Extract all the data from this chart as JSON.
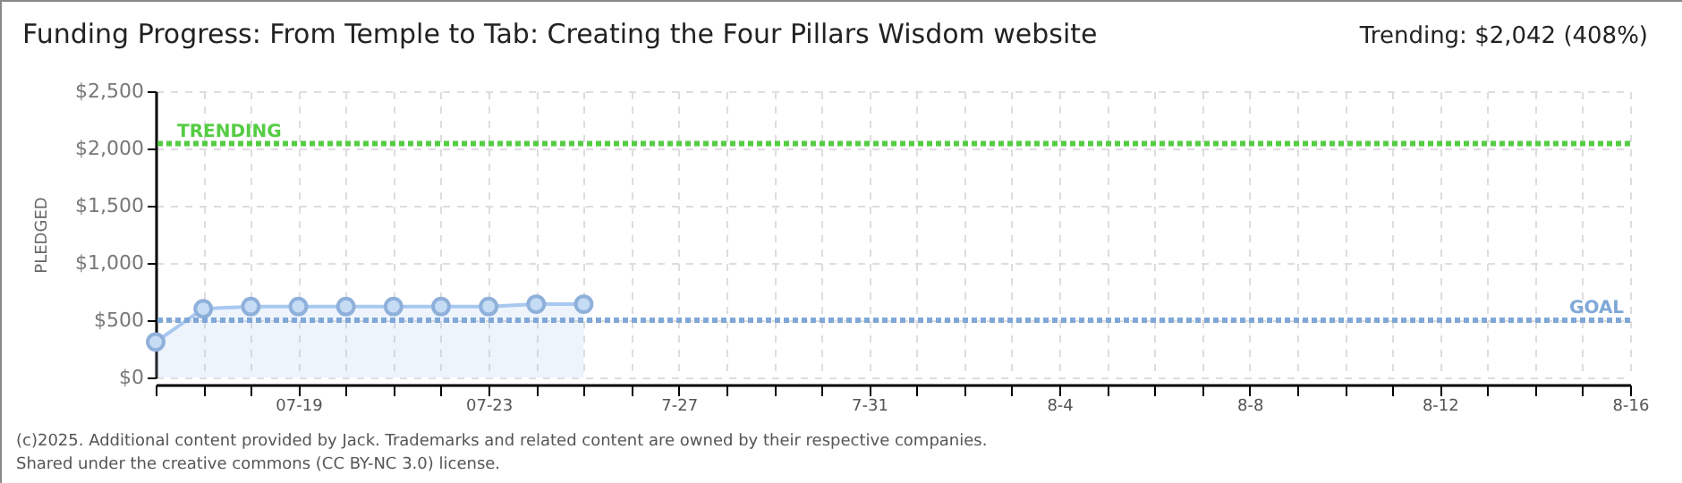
{
  "chart_data": {
    "type": "area",
    "title": "Funding Progress: From Temple to Tab: Creating the Four Pillars Wisdom website",
    "ylabel": "PLEDGED",
    "annotations": [
      "Trending: $2,042 (408%)",
      "(c)2025. Additional content provided by Jack. Trademarks and related content are owned by their respective companies.",
      "Shared under the creative commons (CC BY-NC 3.0) license."
    ],
    "x": [
      "--07-16",
      "--07-17",
      "--07-18",
      "--07-19",
      "--07-20",
      "--07-21",
      "--07-22",
      "--07-23",
      "--07-24",
      "--07-25"
    ],
    "series": [
      {
        "color": "#a8c8f0",
        "values": [
          310,
          600,
          620,
          620,
          620,
          620,
          620,
          620,
          640,
          640
        ]
      }
    ],
    "xlim": [
      "--07-16",
      "--08-16"
    ],
    "xticks": [
      {
        "value": "--07-16",
        "label": null
      },
      {
        "value": "--07-17",
        "label": null
      },
      {
        "value": "--07-18",
        "label": null
      },
      {
        "value": "--07-19",
        "label": "07-19"
      },
      {
        "value": "--07-20",
        "label": null
      },
      {
        "value": "--07-21",
        "label": null
      },
      {
        "value": "--07-22",
        "label": null
      },
      {
        "value": "--07-23",
        "label": "07-23"
      },
      {
        "value": "--07-24",
        "label": null
      },
      {
        "value": "--07-25",
        "label": null
      },
      {
        "value": "--07-26",
        "label": null
      },
      {
        "value": "--07-27",
        "label": "7-27"
      },
      {
        "value": "--07-28",
        "label": null
      },
      {
        "value": "--07-29",
        "label": null
      },
      {
        "value": "--07-30",
        "label": null
      },
      {
        "value": "--07-31",
        "label": "7-31"
      },
      {
        "value": "--08-01",
        "label": null
      },
      {
        "value": "--08-02",
        "label": null
      },
      {
        "value": "--08-03",
        "label": null
      },
      {
        "value": "--08-04",
        "label": "8-4"
      },
      {
        "value": "--08-05",
        "label": null
      },
      {
        "value": "--08-06",
        "label": null
      },
      {
        "value": "--08-07",
        "label": null
      },
      {
        "value": "--08-08",
        "label": "8-8"
      },
      {
        "value": "--08-09",
        "label": null
      },
      {
        "value": "--08-10",
        "label": null
      },
      {
        "value": "--08-11",
        "label": null
      },
      {
        "value": "--08-12",
        "label": "8-12"
      },
      {
        "value": "--08-13",
        "label": null
      },
      {
        "value": "--08-14",
        "label": null
      },
      {
        "value": "--08-15",
        "label": null
      },
      {
        "value": "--08-16",
        "label": "8-16"
      }
    ],
    "ylim": [
      0,
      2500
    ],
    "yticks": [
      {
        "value": 0,
        "label": "$0"
      },
      {
        "value": 500,
        "label": "$500"
      },
      {
        "value": 1000,
        "label": "$1,000"
      },
      {
        "value": 1500,
        "label": "$1,500"
      },
      {
        "value": 2000,
        "label": "$2,000"
      },
      {
        "value": 2500,
        "label": "$2,500"
      }
    ],
    "ref_lines": [
      {
        "axis": "y",
        "value": 2042,
        "label": "TRENDING",
        "color": "#55cc44",
        "line_style": "dotted"
      },
      {
        "axis": "y",
        "value": 500,
        "label": "GOAL",
        "color": "#7fa8d8",
        "line_style": "dotted"
      }
    ],
    "grid": true,
    "marker": "circle"
  }
}
